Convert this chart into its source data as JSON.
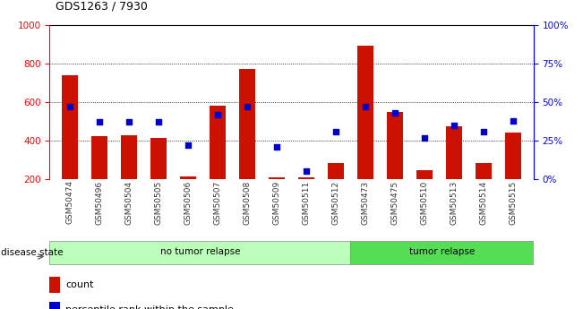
{
  "title": "GDS1263 / 7930",
  "samples": [
    "GSM50474",
    "GSM50496",
    "GSM50504",
    "GSM50505",
    "GSM50506",
    "GSM50507",
    "GSM50508",
    "GSM50509",
    "GSM50511",
    "GSM50512",
    "GSM50473",
    "GSM50475",
    "GSM50510",
    "GSM50513",
    "GSM50514",
    "GSM50515"
  ],
  "counts": [
    740,
    425,
    430,
    415,
    215,
    580,
    770,
    210,
    210,
    285,
    890,
    550,
    245,
    475,
    285,
    440
  ],
  "percentile_ranks": [
    47,
    37,
    37,
    37,
    22,
    42,
    47,
    21,
    5,
    31,
    47,
    43,
    27,
    35,
    31,
    38
  ],
  "groups": [
    "no tumor relapse",
    "no tumor relapse",
    "no tumor relapse",
    "no tumor relapse",
    "no tumor relapse",
    "no tumor relapse",
    "no tumor relapse",
    "no tumor relapse",
    "no tumor relapse",
    "no tumor relapse",
    "tumor relapse",
    "tumor relapse",
    "tumor relapse",
    "tumor relapse",
    "tumor relapse",
    "tumor relapse"
  ],
  "group_colors": {
    "no tumor relapse": "#bbffbb",
    "tumor relapse": "#55dd55"
  },
  "bar_color": "#cc1100",
  "percentile_color": "#0000cc",
  "ylim_left": [
    200,
    1000
  ],
  "ylim_right": [
    0,
    100
  ],
  "yticks_left": [
    200,
    400,
    600,
    800,
    1000
  ],
  "yticks_right": [
    0,
    25,
    50,
    75,
    100
  ],
  "grid_values": [
    400,
    600,
    800
  ],
  "background_color": "#ffffff",
  "bar_width": 0.55,
  "tick_bg_color": "#cccccc"
}
